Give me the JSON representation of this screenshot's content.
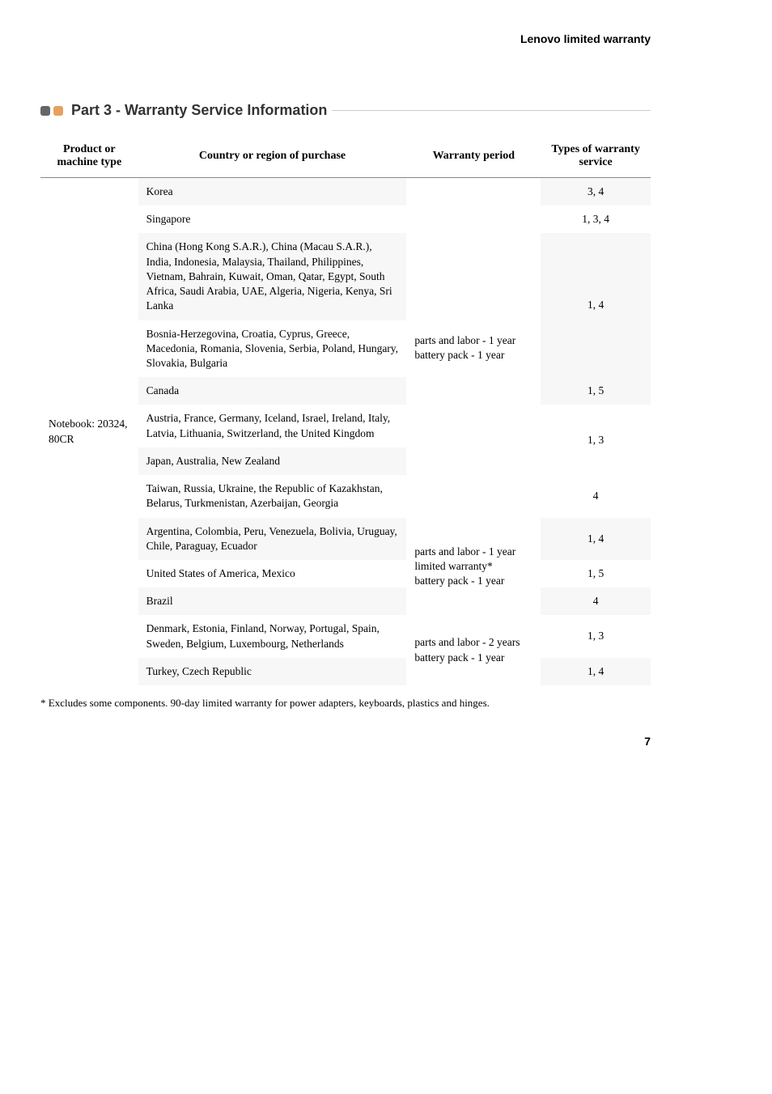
{
  "header": {
    "title": "Lenovo limited warranty"
  },
  "section": {
    "title": "Part 3 - Warranty Service Information"
  },
  "table": {
    "headers": {
      "product": "Product or machine type",
      "country": "Country or region of purchase",
      "period": "Warranty period",
      "types": "Types of warranty service"
    },
    "product": "Notebook: 20324, 80CR",
    "period1": "parts and labor - 1 year\nbattery pack - 1 year",
    "period2": "parts and labor - 1 year limited warranty*\nbattery pack - 1 year",
    "period3": "parts and labor - 2 years\nbattery pack - 1 year",
    "rows": {
      "r1": {
        "country": "Korea",
        "types": "3, 4"
      },
      "r2": {
        "country": "Singapore",
        "types": "1, 3, 4"
      },
      "r3": {
        "country": "China (Hong Kong S.A.R.), China (Macau S.A.R.), India, Indonesia, Malaysia, Thailand, Philippines, Vietnam, Bahrain, Kuwait, Oman, Qatar, Egypt, South Africa, Saudi Arabia, UAE, Algeria, Nigeria, Kenya, Sri Lanka",
        "types": "1, 4"
      },
      "r4": {
        "country": "Bosnia-Herzegovina, Croatia, Cyprus, Greece, Macedonia, Romania, Slovenia, Serbia, Poland, Hungary, Slovakia, Bulgaria"
      },
      "r5": {
        "country": "Canada",
        "types": "1, 5"
      },
      "r6": {
        "country": "Austria, France, Germany, Iceland, Israel, Ireland, Italy, Latvia, Lithuania, Switzerland, the United Kingdom",
        "types": "1, 3"
      },
      "r7": {
        "country": "Japan, Australia, New Zealand"
      },
      "r8": {
        "country": "Taiwan, Russia, Ukraine, the Republic of Kazakhstan, Belarus, Turkmenistan, Azerbaijan, Georgia",
        "types": "4"
      },
      "r9": {
        "country": "Argentina, Colombia, Peru, Venezuela, Bolivia, Uruguay, Chile, Paraguay, Ecuador",
        "types": "1, 4"
      },
      "r10": {
        "country": "United States of America, Mexico",
        "types": "1, 5"
      },
      "r11": {
        "country": "Brazil",
        "types": "4"
      },
      "r12": {
        "country": "Denmark, Estonia, Finland, Norway, Portugal, Spain, Sweden, Belgium, Luxembourg, Netherlands",
        "types": "1, 3"
      },
      "r13": {
        "country": "Turkey, Czech Republic",
        "types": "1, 4"
      }
    }
  },
  "footnote": "* Excludes some components. 90-day limited warranty for power adapters, keyboards, plastics and hinges.",
  "page": "7"
}
